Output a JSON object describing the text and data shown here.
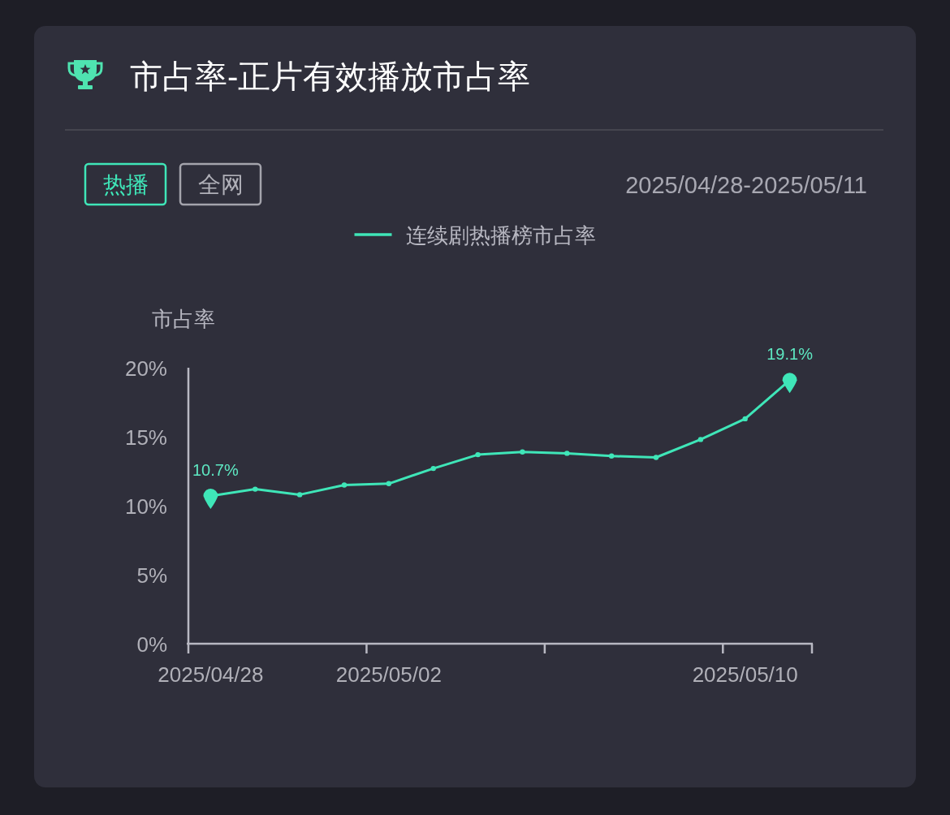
{
  "chart_data": {
    "type": "line",
    "title": "市占率-正片有效播放市占率",
    "subtitle": "2025/04/28-2025/05/11",
    "annotations": [
      "热播",
      "全网"
    ],
    "ylabel": "市占率",
    "categories": [
      "2025/04/28",
      null,
      null,
      null,
      "2025/05/02",
      null,
      null,
      null,
      null,
      null,
      null,
      null,
      "2025/05/10",
      null
    ],
    "series": [
      {
        "name": "连续剧热播榜市占率",
        "color": "#3fe6b8",
        "values": [
          10.7,
          11.2,
          10.8,
          11.5,
          11.6,
          12.7,
          13.7,
          13.9,
          13.8,
          13.6,
          13.5,
          14.8,
          16.3,
          19.1
        ],
        "value_labels": [
          "10.7%",
          null,
          null,
          null,
          null,
          null,
          null,
          null,
          null,
          null,
          null,
          null,
          null,
          "19.1%"
        ]
      }
    ],
    "ylim": [
      0,
      20
    ],
    "yticks": [
      {
        "value": 0,
        "label": "0%"
      },
      {
        "value": 5,
        "label": "5%"
      },
      {
        "value": 10,
        "label": "10%"
      },
      {
        "value": 15,
        "label": "15%"
      },
      {
        "value": 20,
        "label": "20%"
      }
    ],
    "legend": "top",
    "marker": "circle"
  }
}
